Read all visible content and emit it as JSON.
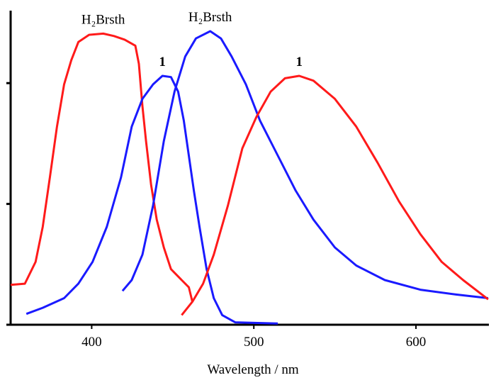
{
  "chart_data": {
    "type": "line",
    "x_label": "Wavelength / nm",
    "xlim": [
      350,
      645
    ],
    "xticks": [
      400,
      500,
      600
    ],
    "ylim": [
      0,
      2.6
    ],
    "yticks": [
      0,
      1,
      2
    ],
    "series": [
      {
        "name": "H₂Brsth",
        "color": "#ff1a1a",
        "label_bold": false,
        "x": [
          350,
          358.8,
          365.4,
          369.8,
          374.2,
          378.6,
          383,
          387.4,
          391.8,
          398.4,
          407.1,
          413.7,
          420.3,
          426.9,
          429.1,
          431.3,
          433.5,
          436.6,
          440.1,
          444.5,
          448.9,
          455.5,
          459.9,
          462.1
        ],
        "values": [
          0.33,
          0.34,
          0.52,
          0.81,
          1.22,
          1.64,
          1.99,
          2.19,
          2.34,
          2.4,
          2.41,
          2.39,
          2.36,
          2.31,
          2.16,
          1.81,
          1.52,
          1.16,
          0.87,
          0.64,
          0.46,
          0.37,
          0.31,
          0.19
        ]
      },
      {
        "name": "1",
        "color": "#1a1aff",
        "label_bold": true,
        "x": [
          359.7,
          369.8,
          383,
          391.8,
          400.5,
          409.3,
          418.1,
          424.7,
          431.3,
          437.9,
          443.6,
          448.9,
          453.3,
          456.8,
          459.9,
          463,
          466.5,
          470.9,
          475.3,
          480.5,
          488.5,
          514.8
        ],
        "values": [
          0.09,
          0.14,
          0.22,
          0.34,
          0.52,
          0.81,
          1.22,
          1.64,
          1.87,
          1.99,
          2.06,
          2.05,
          1.93,
          1.69,
          1.4,
          1.11,
          0.81,
          0.46,
          0.22,
          0.08,
          0.02,
          0.01
        ]
      },
      {
        "name": "H₂Brsth",
        "color": "#1a1aff",
        "label_bold": false,
        "x": [
          419,
          424.7,
          431.3,
          437.9,
          444.5,
          451.1,
          457.7,
          464.3,
          473.1,
          479.7,
          486.3,
          495.1,
          503.8,
          514.8,
          525.8,
          536.8,
          550,
          563.2,
          580.8,
          602.7,
          624.7,
          644.5
        ],
        "values": [
          0.28,
          0.37,
          0.58,
          0.99,
          1.52,
          1.93,
          2.22,
          2.37,
          2.43,
          2.37,
          2.22,
          1.99,
          1.69,
          1.4,
          1.11,
          0.87,
          0.64,
          0.49,
          0.37,
          0.29,
          0.25,
          0.22
        ]
      },
      {
        "name": "1",
        "color": "#ff1a1a",
        "label_bold": true,
        "x": [
          455.5,
          462.1,
          468.7,
          475.3,
          484.1,
          492.9,
          501.6,
          510.4,
          519.2,
          528,
          536.8,
          550,
          563.2,
          576.4,
          589.6,
          602.7,
          615.9,
          629.1,
          644.5
        ],
        "values": [
          0.08,
          0.19,
          0.34,
          0.58,
          0.99,
          1.46,
          1.72,
          1.93,
          2.04,
          2.06,
          2.02,
          1.87,
          1.64,
          1.34,
          1.02,
          0.75,
          0.52,
          0.37,
          0.21
        ]
      }
    ]
  }
}
